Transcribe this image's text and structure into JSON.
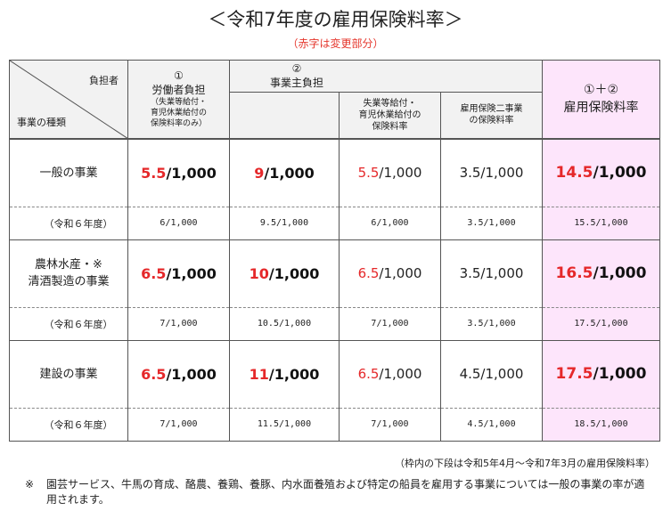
{
  "title": "＜令和7年度の雇用保険料率＞",
  "subtitle": "（赤字は変更部分）",
  "header": {
    "burden_label": "負担者",
    "type_label": "事業の種類",
    "worker_num": "①",
    "worker_label": "労働者負担",
    "worker_note1": "（失業等給付・",
    "worker_note2": "育児休業給付の",
    "worker_note3": "保険料率のみ）",
    "employer_num": "②",
    "employer_label": "事業主負担",
    "emp_sub1_line1": "失業等給付・",
    "emp_sub1_line2": "育児休業給付の",
    "emp_sub1_line3": "保険料率",
    "emp_sub2_line1": "雇用保険二事業",
    "emp_sub2_line2": "の保険料率",
    "total_num": "①＋②",
    "total_label": "雇用保険料率"
  },
  "rows": [
    {
      "label1": "一般の事業",
      "label2": "",
      "worker_red": "5.5",
      "worker_rest": "/1,000",
      "employer_red": "9",
      "employer_rest": "/1,000",
      "sub1_red": "5.5",
      "sub1_rest": "/1,000",
      "sub2": "3.5/1,000",
      "total_red": "14.5",
      "total_rest": "/1,000",
      "prev_label": "（令和６年度）",
      "prev_worker": "6/1,000",
      "prev_employer": "9.5/1,000",
      "prev_sub1": "6/1,000",
      "prev_sub2": "3.5/1,000",
      "prev_total": "15.5/1,000"
    },
    {
      "label1": "農林水産・※",
      "label2": "清酒製造の事業",
      "worker_red": "6.5",
      "worker_rest": "/1,000",
      "employer_red": "10",
      "employer_rest": "/1,000",
      "sub1_red": "6.5",
      "sub1_rest": "/1,000",
      "sub2": "3.5/1,000",
      "total_red": "16.5",
      "total_rest": "/1,000",
      "prev_label": "（令和６年度）",
      "prev_worker": "7/1,000",
      "prev_employer": "10.5/1,000",
      "prev_sub1": "7/1,000",
      "prev_sub2": "3.5/1,000",
      "prev_total": "17.5/1,000"
    },
    {
      "label1": "建設の事業",
      "label2": "",
      "worker_red": "6.5",
      "worker_rest": "/1,000",
      "employer_red": "11",
      "employer_rest": "/1,000",
      "sub1_red": "6.5",
      "sub1_rest": "/1,000",
      "sub2": "4.5/1,000",
      "total_red": "17.5",
      "total_rest": "/1,000",
      "prev_label": "（令和６年度）",
      "prev_worker": "7/1,000",
      "prev_employer": "11.5/1,000",
      "prev_sub1": "7/1,000",
      "prev_sub2": "4.5/1,000",
      "prev_total": "18.5/1,000"
    }
  ],
  "range_note": "（枠内の下段は令和5年4月～令和7年3月の雇用保険料率）",
  "footnote_mark": "※",
  "footnote_text": "園芸サービス、牛馬の育成、酪農、養鶏、養豚、内水面養殖および特定の船員を雇用する事業については一般の事業の率が適用されます。",
  "colors": {
    "changed": "#e5282a",
    "total_bg": "#fde5fb",
    "header_bg": "#f2f2f2"
  }
}
